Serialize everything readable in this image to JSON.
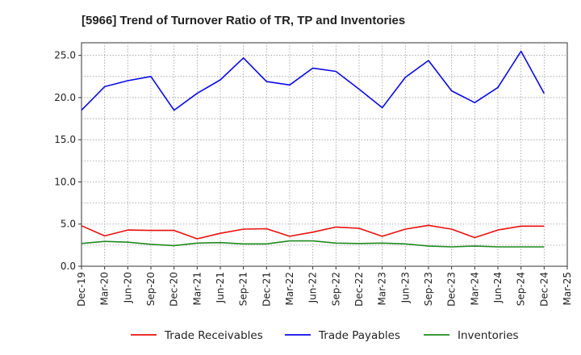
{
  "chart_data": {
    "type": "line",
    "title": "[5966]  Trend of Turnover Ratio of TR, TP and Inventories",
    "xlabel": "",
    "ylabel": "",
    "x_tick_labels": [
      "Dec-19",
      "Mar-20",
      "Jun-20",
      "Sep-20",
      "Dec-20",
      "Mar-21",
      "Jun-21",
      "Sep-21",
      "Dec-21",
      "Mar-22",
      "Jun-22",
      "Sep-22",
      "Dec-22",
      "Mar-23",
      "Jun-23",
      "Sep-23",
      "Dec-23",
      "Mar-24",
      "Jun-24",
      "Sep-24",
      "Dec-24",
      "Mar-25"
    ],
    "x": [
      "Dec-19",
      "Mar-20",
      "Jun-20",
      "Sep-20",
      "Dec-20",
      "Mar-21",
      "Jun-21",
      "Sep-21",
      "Dec-21",
      "Mar-22",
      "Jun-22",
      "Sep-22",
      "Dec-22",
      "Mar-23",
      "Jun-23",
      "Sep-23",
      "Dec-23",
      "Mar-24",
      "Jun-24",
      "Sep-24",
      "Dec-24"
    ],
    "ylim": [
      0,
      26.5
    ],
    "y_ticks": [
      "0.0",
      "5.0",
      "10.0",
      "15.0",
      "20.0",
      "25.0"
    ],
    "grid": true,
    "legend_position": "bottom",
    "series": [
      {
        "name": "Trade Receivables",
        "color": "#e8100c",
        "values": [
          4.8,
          3.6,
          4.3,
          4.25,
          4.25,
          3.25,
          3.9,
          4.4,
          4.45,
          3.55,
          4.05,
          4.65,
          4.5,
          3.55,
          4.4,
          4.85,
          4.4,
          3.4,
          4.3,
          4.75,
          4.75
        ]
      },
      {
        "name": "Trade Payables",
        "color": "#0a0ae6",
        "values": [
          18.5,
          21.3,
          22.0,
          22.5,
          18.5,
          20.5,
          22.1,
          24.7,
          21.9,
          21.5,
          23.5,
          23.1,
          21.0,
          18.8,
          22.4,
          24.4,
          20.8,
          19.4,
          21.2,
          25.5,
          20.5
        ]
      },
      {
        "name": "Inventories",
        "color": "#1f8a1f",
        "values": [
          2.7,
          2.95,
          2.85,
          2.6,
          2.45,
          2.75,
          2.8,
          2.65,
          2.65,
          3.0,
          3.0,
          2.75,
          2.7,
          2.75,
          2.65,
          2.4,
          2.3,
          2.4,
          2.3,
          2.3,
          2.3
        ]
      }
    ]
  }
}
